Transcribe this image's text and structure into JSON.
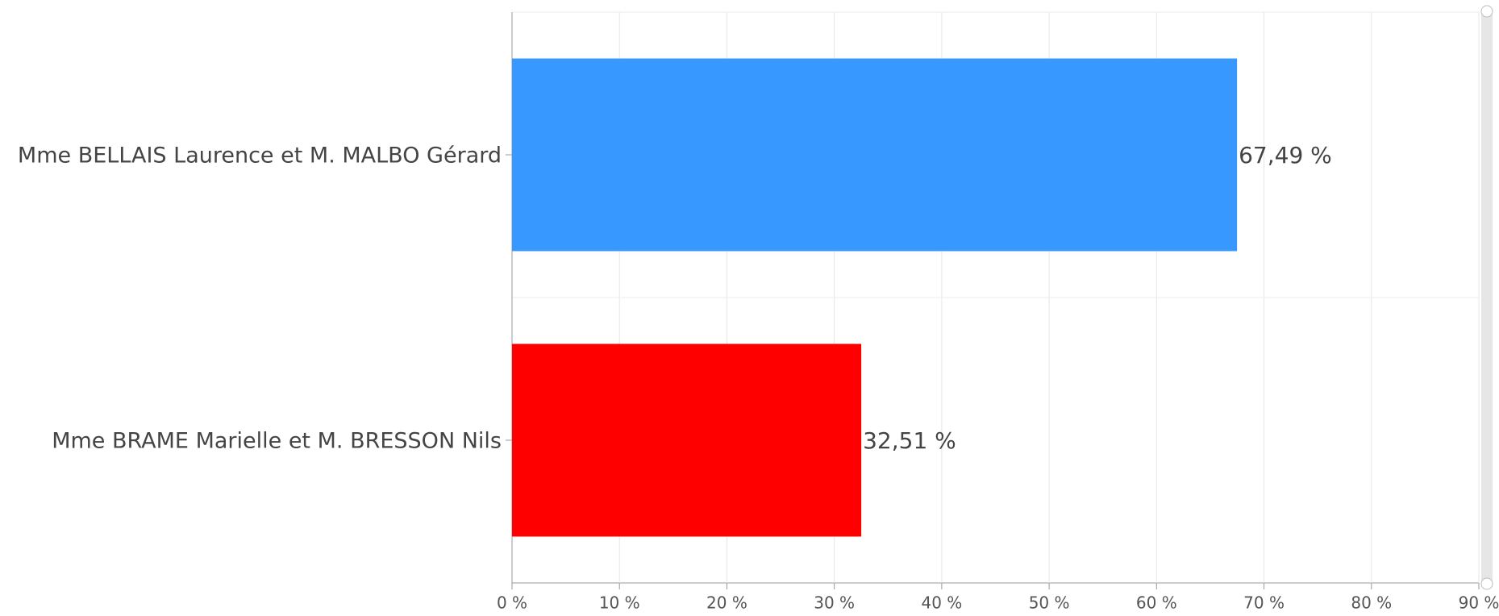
{
  "chart_data": {
    "type": "bar",
    "orientation": "horizontal",
    "categories": [
      "Mme BELLAIS Laurence et M. MALBO Gérard",
      "Mme BRAME Marielle et M. BRESSON Nils"
    ],
    "values": [
      67.49,
      32.51
    ],
    "value_labels": [
      "67,49 %",
      "32,51 %"
    ],
    "colors": [
      "#3799ff",
      "#ff0000"
    ],
    "xlim": [
      0,
      90
    ],
    "xticks": [
      {
        "value": 0,
        "label": "0 %"
      },
      {
        "value": 10,
        "label": "10 %"
      },
      {
        "value": 20,
        "label": "20 %"
      },
      {
        "value": 30,
        "label": "30 %"
      },
      {
        "value": 40,
        "label": "40 %"
      },
      {
        "value": 50,
        "label": "50 %"
      },
      {
        "value": 60,
        "label": "60 %"
      },
      {
        "value": 70,
        "label": "70 %"
      },
      {
        "value": 80,
        "label": "80 %"
      },
      {
        "value": 90,
        "label": "90 %"
      }
    ],
    "grid": true
  }
}
